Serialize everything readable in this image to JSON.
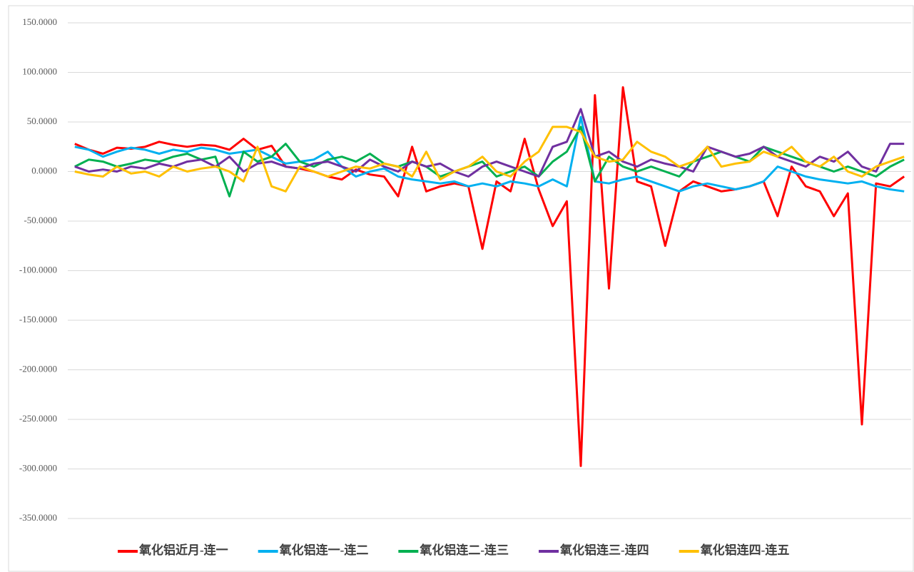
{
  "chart_data": {
    "type": "line",
    "categories": [
      null,
      null,
      null,
      null,
      null,
      null,
      null,
      null,
      null,
      null,
      null,
      null,
      null,
      null,
      null,
      null,
      null,
      null,
      null,
      null,
      null,
      null,
      null,
      null,
      null,
      null,
      null,
      null,
      null,
      null,
      null,
      null,
      null,
      null,
      null,
      null,
      null,
      null,
      null,
      null,
      null,
      null,
      null,
      null,
      null,
      null,
      null,
      null,
      null,
      null,
      null,
      null,
      null,
      null,
      null,
      null,
      null,
      null,
      null,
      null
    ],
    "series": [
      {
        "name": "氧化铝近月-连一",
        "color": "#ff0000",
        "values": [
          28,
          22,
          18,
          24,
          23,
          25,
          30,
          27,
          25,
          27,
          26,
          22,
          33,
          22,
          26,
          5,
          3,
          0,
          -5,
          -8,
          2,
          -3,
          -5,
          -25,
          25,
          -20,
          -15,
          -12,
          -15,
          -78,
          -10,
          -20,
          33,
          -18,
          -55,
          -30,
          -297,
          77,
          -118,
          85,
          -10,
          -15,
          -75,
          -20,
          -10,
          -15,
          -20,
          -18,
          -15,
          -10,
          -45,
          5,
          -15,
          -20,
          -45,
          -22,
          -255,
          -12,
          -15,
          -5
        ]
      },
      {
        "name": "氧化铝连一-连二",
        "color": "#00b0f0",
        "values": [
          25,
          22,
          15,
          20,
          24,
          22,
          18,
          22,
          20,
          24,
          22,
          18,
          20,
          22,
          15,
          8,
          10,
          12,
          20,
          5,
          -5,
          0,
          3,
          -5,
          -8,
          -10,
          -12,
          -10,
          -15,
          -12,
          -15,
          -10,
          -12,
          -15,
          -8,
          -15,
          55,
          -10,
          -12,
          -8,
          -5,
          -10,
          -15,
          -20,
          -15,
          -12,
          -15,
          -18,
          -15,
          -10,
          5,
          0,
          -5,
          -8,
          -10,
          -12,
          -10,
          -15,
          -18,
          -20
        ]
      },
      {
        "name": "氧化铝连二-连三",
        "color": "#00b050",
        "values": [
          5,
          12,
          10,
          5,
          8,
          12,
          10,
          15,
          18,
          12,
          15,
          -25,
          20,
          10,
          15,
          28,
          10,
          5,
          12,
          15,
          10,
          18,
          8,
          5,
          10,
          5,
          -5,
          0,
          5,
          10,
          -5,
          0,
          5,
          -5,
          10,
          20,
          45,
          -10,
          15,
          5,
          0,
          5,
          0,
          -5,
          10,
          15,
          20,
          15,
          10,
          25,
          20,
          15,
          10,
          5,
          0,
          5,
          0,
          -5,
          5,
          12
        ]
      },
      {
        "name": "氧化铝连三-连四",
        "color": "#7030a0",
        "values": [
          5,
          0,
          2,
          0,
          5,
          3,
          8,
          5,
          10,
          12,
          5,
          15,
          0,
          8,
          10,
          5,
          3,
          8,
          10,
          5,
          0,
          12,
          5,
          0,
          10,
          5,
          8,
          0,
          -5,
          5,
          10,
          5,
          0,
          -5,
          25,
          30,
          63,
          15,
          20,
          10,
          5,
          12,
          8,
          5,
          0,
          25,
          20,
          15,
          18,
          25,
          15,
          10,
          5,
          15,
          10,
          20,
          5,
          0,
          28,
          28
        ]
      },
      {
        "name": "氧化铝连四-连五",
        "color": "#ffc000",
        "values": [
          0,
          -3,
          -5,
          5,
          -2,
          0,
          -5,
          5,
          0,
          3,
          5,
          0,
          -10,
          25,
          -15,
          -20,
          5,
          0,
          -5,
          0,
          5,
          3,
          8,
          5,
          -5,
          20,
          -8,
          0,
          5,
          15,
          0,
          -5,
          10,
          20,
          45,
          45,
          40,
          15,
          10,
          12,
          30,
          20,
          15,
          5,
          10,
          25,
          5,
          8,
          10,
          20,
          15,
          25,
          10,
          5,
          15,
          0,
          -5,
          5,
          10,
          15
        ]
      }
    ],
    "ylim": [
      -350,
      150
    ],
    "yticks": [
      {
        "value": -350,
        "label": "-350.0000"
      },
      {
        "value": -300,
        "label": "-300.0000"
      },
      {
        "value": -250,
        "label": "-250.0000"
      },
      {
        "value": -200,
        "label": "-200.0000"
      },
      {
        "value": -150,
        "label": "-150.0000"
      },
      {
        "value": -100,
        "label": "-100.0000"
      },
      {
        "value": -50,
        "label": "-50.0000"
      },
      {
        "value": 0,
        "label": "0.0000"
      },
      {
        "value": 50,
        "label": "50.0000"
      },
      {
        "value": 100,
        "label": "100.0000"
      },
      {
        "value": 150,
        "label": "150.0000"
      }
    ],
    "grid": true,
    "legend": "bottom"
  }
}
